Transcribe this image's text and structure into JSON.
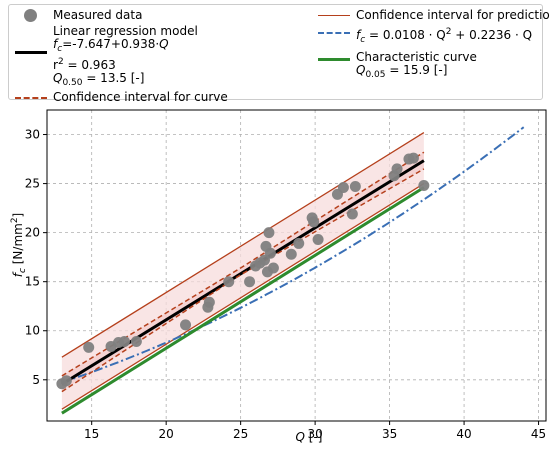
{
  "chart_data": {
    "type": "scatter",
    "xlabel": "Q [-]",
    "ylabel": "f_c [N/mm²]",
    "xlim": [
      12,
      45.5
    ],
    "ylim": [
      0.8,
      32.5
    ],
    "x_ticks": [
      15,
      20,
      25,
      30,
      35,
      40,
      45
    ],
    "y_ticks": [
      5,
      10,
      15,
      20,
      25,
      30
    ],
    "grid": true,
    "legend_position": "top",
    "colors": {
      "measured": "#808080",
      "regression": "#000000",
      "confidence_curve": "#b5401c",
      "prediction": "#b5401c",
      "prediction_fill": "#f7dcdc",
      "power_curve": "#3a6fb5",
      "characteristic": "#2e8b2e"
    },
    "legend": {
      "measured": "Measured data",
      "regression_title": "Linear regression model",
      "regression_eq_lhs": "f",
      "regression_eq_sub": "c",
      "regression_eq_rhs": "=-7.647+0.938·",
      "regression_eq_var": "Q",
      "r2_label": "r",
      "r2_sup": "2",
      "r2_value": " = 0.963",
      "q50_var": "Q",
      "q50_sub": "0.50",
      "q50_value": " = 13.5 [-]",
      "confidence_curve": "Confidence interval for curve",
      "prediction": "Confidence interval for prediction",
      "power_curve_lhs": "f",
      "power_curve_sub": "c",
      "power_curve_rhs": " = 0.0108 · Q",
      "power_curve_sup": "2",
      "power_curve_tail": " + 0.2236 · Q",
      "characteristic_title": "Characteristic curve",
      "q05_var": "Q",
      "q05_sub": "0.05",
      "q05_value": " = 15.9 [-]"
    },
    "series": [
      {
        "name": "Measured data",
        "kind": "scatter",
        "points": [
          [
            13.0,
            4.6
          ],
          [
            13.3,
            4.9
          ],
          [
            14.8,
            8.3
          ],
          [
            16.3,
            8.4
          ],
          [
            16.8,
            8.8
          ],
          [
            17.2,
            8.9
          ],
          [
            18.0,
            8.9
          ],
          [
            21.3,
            10.6
          ],
          [
            22.8,
            12.4
          ],
          [
            22.9,
            12.9
          ],
          [
            24.2,
            15.0
          ],
          [
            25.6,
            15.0
          ],
          [
            26.0,
            16.6
          ],
          [
            26.3,
            16.9
          ],
          [
            26.6,
            17.2
          ],
          [
            26.7,
            18.6
          ],
          [
            26.8,
            16.0
          ],
          [
            26.9,
            20.0
          ],
          [
            27.0,
            17.9
          ],
          [
            27.2,
            16.4
          ],
          [
            28.4,
            17.8
          ],
          [
            28.9,
            18.9
          ],
          [
            29.8,
            21.5
          ],
          [
            29.9,
            21.1
          ],
          [
            30.2,
            19.3
          ],
          [
            31.5,
            23.9
          ],
          [
            31.9,
            24.6
          ],
          [
            32.5,
            21.9
          ],
          [
            32.7,
            24.7
          ],
          [
            35.3,
            25.8
          ],
          [
            35.5,
            26.5
          ],
          [
            36.3,
            27.5
          ],
          [
            36.6,
            27.6
          ],
          [
            37.3,
            24.8
          ]
        ]
      },
      {
        "name": "Linear regression model",
        "kind": "line",
        "intercept": -7.647,
        "slope": 0.938,
        "x_range": [
          13,
          37.3
        ]
      },
      {
        "name": "Confidence interval for curve",
        "kind": "band",
        "upper": [
          [
            13,
            5.4
          ],
          [
            25,
            16.4
          ],
          [
            37.3,
            28.2
          ]
        ],
        "lower": [
          [
            13,
            3.8
          ],
          [
            25,
            15.7
          ],
          [
            37.3,
            26.5
          ]
        ]
      },
      {
        "name": "Confidence interval for prediction",
        "kind": "band",
        "upper": [
          [
            13,
            7.3
          ],
          [
            37.3,
            30.2
          ]
        ],
        "lower": [
          [
            13,
            2.0
          ],
          [
            37.3,
            25.0
          ]
        ]
      },
      {
        "name": "f_c = 0.0108·Q² + 0.2236·Q",
        "kind": "curve",
        "a": 0.0108,
        "b": 0.2236,
        "x_range": [
          13,
          44
        ]
      },
      {
        "name": "Characteristic curve",
        "kind": "line",
        "points": [
          [
            13,
            1.6
          ],
          [
            37.3,
            24.6
          ]
        ]
      }
    ]
  }
}
